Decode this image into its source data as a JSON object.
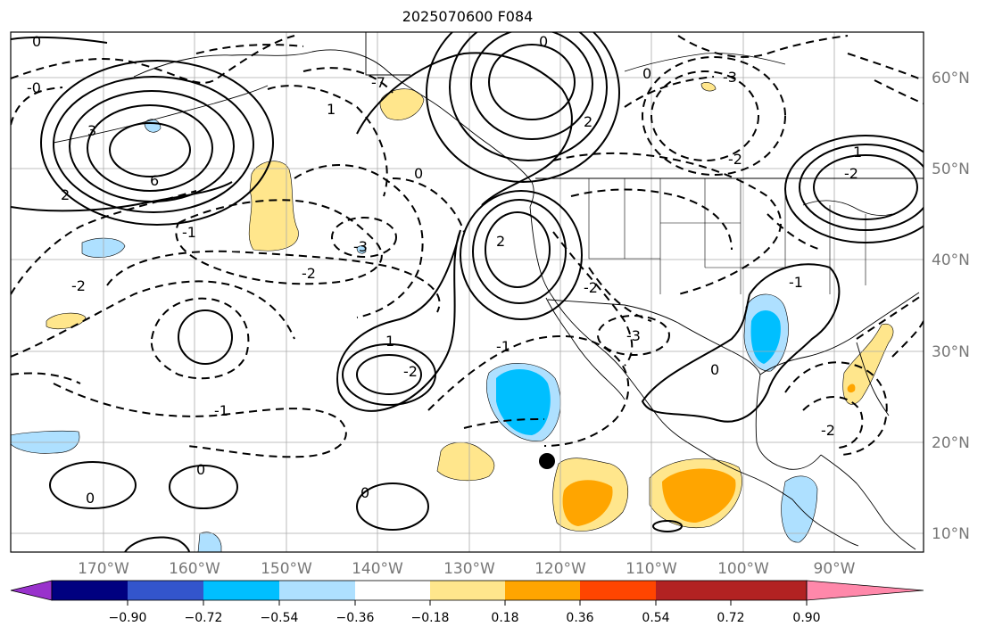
{
  "title": "2025070600 F084",
  "map": {
    "lon_ticks": [
      "170°W",
      "160°W",
      "150°W",
      "140°W",
      "130°W",
      "120°W",
      "110°W",
      "100°W",
      "90°W"
    ],
    "lat_ticks": [
      "60°N",
      "50°N",
      "40°N",
      "30°N",
      "20°N",
      "10°N"
    ],
    "contour_labels": [
      "0",
      "-0",
      "3",
      "6",
      "2",
      "-2",
      "-1",
      "-3",
      "1",
      "-7",
      "0",
      "2",
      "-2",
      "-1",
      "1",
      "0",
      "-3",
      "-2",
      "0",
      "1",
      "-2",
      "-1",
      "0",
      "0",
      "0",
      "-3",
      "-2",
      "2",
      "-1",
      "-2",
      "-2",
      "0"
    ]
  },
  "colorbar": {
    "colors": [
      "#9932cc",
      "#000080",
      "#3355cc",
      "#00bfff",
      "#aee0ff",
      "#ffffff",
      "#ffe68c",
      "#ffa500",
      "#ff4500",
      "#b22222",
      "#ff88aa"
    ],
    "ticks": [
      "−0.90",
      "−0.72",
      "−0.54",
      "−0.36",
      "−0.18",
      "0.18",
      "0.36",
      "0.54",
      "0.72",
      "0.90"
    ]
  }
}
